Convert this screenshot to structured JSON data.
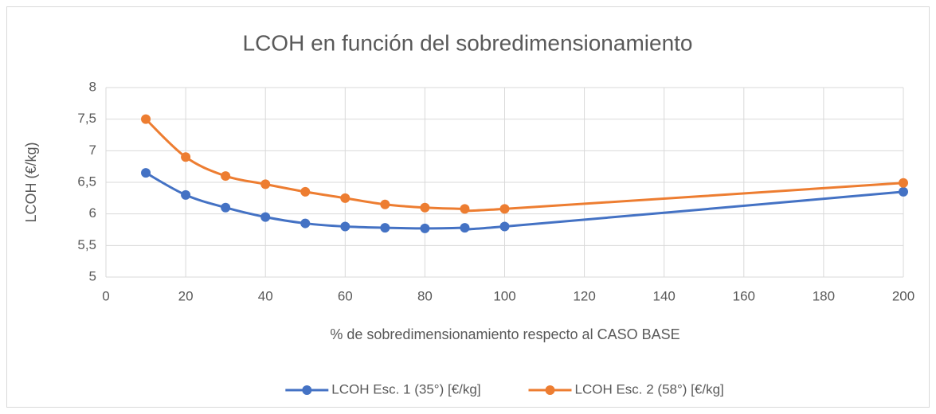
{
  "chart_data": {
    "type": "line",
    "title": "LCOH en función del sobredimensionamiento",
    "x_label": "% de sobredimensionamiento respecto al CASO BASE",
    "y_label": "LCOH (€/kg)",
    "x": [
      10,
      20,
      30,
      40,
      50,
      60,
      70,
      80,
      90,
      100,
      200
    ],
    "series": [
      {
        "name": "LCOH Esc. 1 (35°) [€/kg]",
        "color": "#4472c4",
        "values": [
          6.65,
          6.3,
          6.1,
          5.95,
          5.85,
          5.8,
          5.78,
          5.77,
          5.78,
          5.8,
          6.35
        ]
      },
      {
        "name": "LCOH Esc. 2 (58°) [€/kg]",
        "color": "#ed7d31",
        "values": [
          7.5,
          6.9,
          6.6,
          6.47,
          6.35,
          6.25,
          6.15,
          6.1,
          6.08,
          6.08,
          6.49
        ]
      }
    ],
    "xlim": [
      0,
      200
    ],
    "xticks": [
      0,
      20,
      40,
      60,
      80,
      100,
      120,
      140,
      160,
      180,
      200
    ],
    "ylim": [
      5,
      8
    ],
    "yticks": [
      5,
      {
        "value": 5.5,
        "label": "5,5"
      },
      6,
      {
        "value": 6.5,
        "label": "6,5"
      },
      7,
      {
        "value": 7.5,
        "label": "7,5"
      },
      8
    ],
    "grid": true,
    "smooth": true,
    "legend": "bottom"
  }
}
